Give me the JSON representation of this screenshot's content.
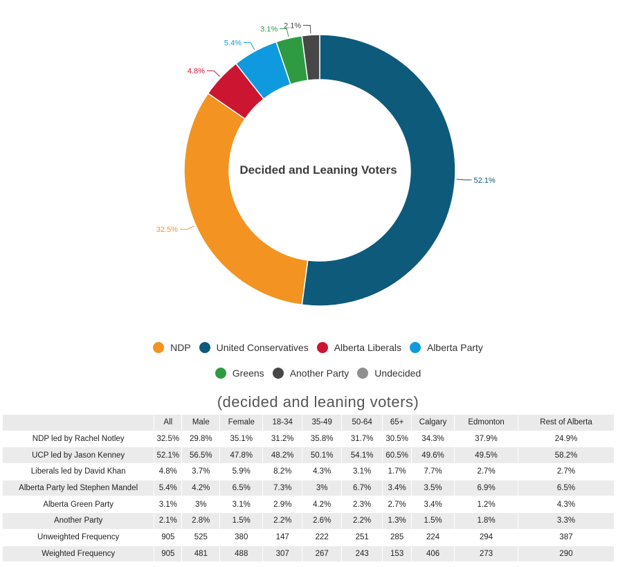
{
  "chart_data": {
    "type": "pie",
    "title": "Decided and Leaning Voters",
    "series": [
      {
        "name": "United Conservatives",
        "value": 52.1,
        "label": "52.1%",
        "color": "#0e5a7a"
      },
      {
        "name": "NDP",
        "value": 32.5,
        "label": "32.5%",
        "color": "#f39322"
      },
      {
        "name": "Alberta Liberals",
        "value": 4.8,
        "label": "4.8%",
        "color": "#cc1531"
      },
      {
        "name": "Alberta Party",
        "value": 5.4,
        "label": "5.4%",
        "color": "#0f9adf"
      },
      {
        "name": "Greens",
        "value": 3.1,
        "label": "3.1%",
        "color": "#2e9b43"
      },
      {
        "name": "Another Party",
        "value": 2.1,
        "label": "2.1%",
        "color": "#474747"
      },
      {
        "name": "Undecided",
        "value": 0,
        "label": "",
        "color": "#8f8f8f"
      }
    ],
    "legend": [
      {
        "name": "NDP",
        "color": "#f39322"
      },
      {
        "name": "United Conservatives",
        "color": "#0e5a7a"
      },
      {
        "name": "Alberta Liberals",
        "color": "#cc1531"
      },
      {
        "name": "Alberta Party",
        "color": "#0f9adf"
      },
      {
        "name": "Greens",
        "color": "#2e9b43"
      },
      {
        "name": "Another Party",
        "color": "#474747"
      },
      {
        "name": "Undecided",
        "color": "#8f8f8f"
      }
    ]
  },
  "subtitle": "(decided and leaning voters)",
  "table": {
    "headers": [
      "",
      "All",
      "Male",
      "Female",
      "18-34",
      "35-49",
      "50-64",
      "65+",
      "Calgary",
      "Edmonton",
      "Rest of Alberta"
    ],
    "rows": [
      [
        "NDP led by Rachel Notley",
        "32.5%",
        "29.8%",
        "35.1%",
        "31.2%",
        "35.8%",
        "31.7%",
        "30.5%",
        "34.3%",
        "37.9%",
        "24.9%"
      ],
      [
        "UCP led by Jason Kenney",
        "52.1%",
        "56.5%",
        "47.8%",
        "48.2%",
        "50.1%",
        "54.1%",
        "60.5%",
        "49.6%",
        "49.5%",
        "58.2%"
      ],
      [
        "Liberals led by David Khan",
        "4.8%",
        "3.7%",
        "5.9%",
        "8.2%",
        "4.3%",
        "3.1%",
        "1.7%",
        "7.7%",
        "2.7%",
        "2.7%"
      ],
      [
        "Alberta Party led Stephen Mandel",
        "5.4%",
        "4.2%",
        "6.5%",
        "7.3%",
        "3%",
        "6.7%",
        "3.4%",
        "3.5%",
        "6.9%",
        "6.5%"
      ],
      [
        "Alberta Green Party",
        "3.1%",
        "3%",
        "3.1%",
        "2.9%",
        "4.2%",
        "2.3%",
        "2.7%",
        "3.4%",
        "1.2%",
        "4.3%"
      ],
      [
        "Another Party",
        "2.1%",
        "2.8%",
        "1.5%",
        "2.2%",
        "2.6%",
        "2.2%",
        "1.3%",
        "1.5%",
        "1.8%",
        "3.3%"
      ],
      [
        "Unweighted Frequency",
        "905",
        "525",
        "380",
        "147",
        "222",
        "251",
        "285",
        "224",
        "294",
        "387"
      ],
      [
        "Weighted Frequency",
        "905",
        "481",
        "488",
        "307",
        "267",
        "243",
        "153",
        "406",
        "273",
        "290"
      ]
    ]
  }
}
